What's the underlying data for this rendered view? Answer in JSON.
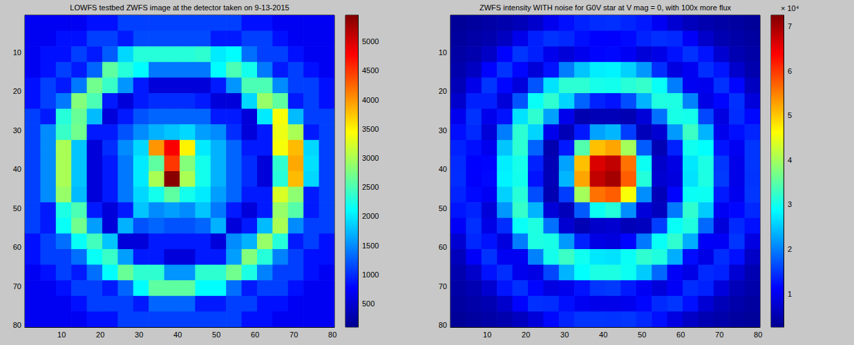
{
  "chart_data": [
    {
      "type": "heatmap",
      "title": "LOWFS testbed ZWFS image at the detector taken on 9-13-2015",
      "x": [
        2.5,
        6.5,
        10.5,
        14.5,
        18.5,
        22.5,
        26.5,
        30.5,
        34.5,
        38.5,
        42.5,
        46.5,
        50.5,
        54.5,
        58.5,
        62.5,
        66.5,
        70.5,
        74.5,
        78.5
      ],
      "y": [
        2.5,
        6.5,
        10.5,
        14.5,
        18.5,
        22.5,
        26.5,
        30.5,
        34.5,
        38.5,
        42.5,
        46.5,
        50.5,
        54.5,
        58.5,
        62.5,
        66.5,
        70.5,
        74.5,
        78.5
      ],
      "values": [
        [
          700,
          700,
          700,
          700,
          850,
          850,
          1100,
          1100,
          1100,
          1100,
          1100,
          1100,
          1100,
          1100,
          850,
          850,
          700,
          700,
          700,
          700
        ],
        [
          700,
          700,
          850,
          850,
          1100,
          1100,
          900,
          1150,
          1150,
          1150,
          1150,
          1150,
          900,
          900,
          1100,
          1100,
          850,
          700,
          700,
          700
        ],
        [
          700,
          850,
          850,
          1100,
          900,
          1250,
          1900,
          2300,
          2300,
          2300,
          2300,
          2350,
          2000,
          2100,
          1350,
          1100,
          1100,
          850,
          700,
          700
        ],
        [
          700,
          850,
          1100,
          900,
          1300,
          2600,
          2300,
          2100,
          1400,
          1400,
          1400,
          1400,
          2100,
          2500,
          2200,
          1400,
          900,
          1100,
          850,
          700
        ],
        [
          850,
          1100,
          900,
          1400,
          2700,
          2400,
          1550,
          900,
          550,
          550,
          550,
          550,
          900,
          1550,
          2500,
          2500,
          1500,
          1100,
          1100,
          850
        ],
        [
          850,
          1100,
          1400,
          2800,
          2500,
          900,
          550,
          900,
          1000,
          1000,
          1000,
          900,
          550,
          550,
          1900,
          2900,
          2600,
          900,
          1100,
          850
        ],
        [
          1100,
          900,
          2300,
          2650,
          1750,
          550,
          900,
          1200,
          1300,
          1300,
          1300,
          1300,
          900,
          900,
          550,
          2000,
          3400,
          1750,
          1100,
          1100
        ],
        [
          1100,
          1500,
          2400,
          2700,
          900,
          900,
          1200,
          1500,
          1700,
          1800,
          1900,
          1600,
          1500,
          1000,
          550,
          900,
          3350,
          3000,
          900,
          1100
        ],
        [
          1100,
          1500,
          3000,
          1800,
          550,
          1000,
          1500,
          1900,
          4000,
          4800,
          3500,
          2000,
          1700,
          1300,
          900,
          900,
          3400,
          3800,
          1900,
          1100
        ],
        [
          1100,
          1500,
          3000,
          1800,
          550,
          900,
          1400,
          2000,
          2600,
          4500,
          2800,
          2200,
          1700,
          1300,
          1000,
          550,
          2350,
          3900,
          1950,
          1100
        ],
        [
          1100,
          1500,
          3000,
          1800,
          550,
          900,
          1400,
          2000,
          3000,
          5400,
          3000,
          2200,
          1700,
          1300,
          1000,
          550,
          2300,
          3800,
          1900,
          1100
        ],
        [
          1100,
          1500,
          2900,
          1750,
          550,
          900,
          1400,
          1900,
          2200,
          2600,
          2200,
          2000,
          1600,
          1300,
          900,
          900,
          3250,
          2850,
          900,
          1100
        ],
        [
          1100,
          900,
          2250,
          2500,
          900,
          550,
          900,
          1800,
          1500,
          1600,
          1500,
          1800,
          1400,
          900,
          550,
          900,
          2900,
          2550,
          900,
          1100
        ],
        [
          1100,
          900,
          2150,
          2700,
          1600,
          550,
          1700,
          1200,
          1300,
          1200,
          1200,
          1300,
          1700,
          550,
          900,
          1750,
          3000,
          1500,
          1100,
          1100
        ],
        [
          850,
          1100,
          1350,
          2150,
          2450,
          1800,
          550,
          550,
          900,
          900,
          900,
          900,
          550,
          1500,
          1700,
          2900,
          2300,
          900,
          1100,
          850
        ],
        [
          850,
          1100,
          1100,
          1350,
          2150,
          2400,
          1600,
          900,
          900,
          550,
          550,
          900,
          900,
          1600,
          2800,
          2300,
          1450,
          1100,
          850,
          850
        ],
        [
          700,
          850,
          1100,
          900,
          1350,
          2100,
          2650,
          2350,
          2350,
          1550,
          1550,
          2350,
          2350,
          2700,
          2250,
          1450,
          1100,
          1100,
          850,
          700
        ],
        [
          700,
          700,
          850,
          1100,
          1100,
          900,
          1300,
          2100,
          2600,
          2600,
          2600,
          2100,
          2100,
          1350,
          900,
          1100,
          1100,
          850,
          700,
          700
        ],
        [
          700,
          700,
          700,
          850,
          1100,
          1100,
          1100,
          900,
          1300,
          1300,
          1300,
          900,
          900,
          1100,
          1100,
          850,
          850,
          700,
          700,
          700
        ],
        [
          700,
          700,
          700,
          700,
          850,
          850,
          1100,
          1100,
          1100,
          1100,
          1100,
          1100,
          1100,
          1100,
          850,
          850,
          700,
          700,
          700,
          700
        ]
      ],
      "xlim": [
        0.5,
        80.5
      ],
      "ylim": [
        80.5,
        0.5
      ],
      "xticks": [
        10,
        20,
        30,
        40,
        50,
        60,
        70,
        80
      ],
      "yticks": [
        10,
        20,
        30,
        40,
        50,
        60,
        70,
        80
      ],
      "colorbar": {
        "lim": [
          100,
          5450
        ],
        "ticks": [
          500,
          1000,
          1500,
          2000,
          2500,
          3000,
          3500,
          4000,
          4500,
          5000
        ]
      }
    },
    {
      "type": "heatmap",
      "title": "ZWFS intensity WITH noise for G0V star at V mag = 0, with 100x more flux",
      "x": [
        2.5,
        6.5,
        10.5,
        14.5,
        18.5,
        22.5,
        26.5,
        30.5,
        34.5,
        38.5,
        42.5,
        46.5,
        50.5,
        54.5,
        58.5,
        62.5,
        66.5,
        70.5,
        74.5,
        78.5
      ],
      "y": [
        2.5,
        6.5,
        10.5,
        14.5,
        18.5,
        22.5,
        26.5,
        30.5,
        34.5,
        38.5,
        42.5,
        46.5,
        50.5,
        54.5,
        58.5,
        62.5,
        66.5,
        70.5,
        74.5,
        78.5
      ],
      "values": [
        [
          3200,
          3700,
          4200,
          4800,
          5700,
          7300,
          10000,
          12200,
          13500,
          14300,
          14500,
          13700,
          12800,
          10500,
          7700,
          6000,
          5000,
          4400,
          3800,
          3300
        ],
        [
          3700,
          4300,
          5000,
          6500,
          9600,
          13400,
          14700,
          14000,
          12200,
          11200,
          11000,
          11800,
          13600,
          14500,
          14000,
          10800,
          7100,
          5300,
          4500,
          3800
        ],
        [
          4200,
          5000,
          6900,
          11400,
          14900,
          13400,
          9800,
          8200,
          10000,
          11500,
          11700,
          10500,
          8200,
          9300,
          12400,
          14600,
          12500,
          7600,
          5300,
          4400
        ],
        [
          4800,
          6500,
          11400,
          14750,
          11600,
          8300,
          12500,
          19750,
          24800,
          27600,
          28000,
          25600,
          21600,
          14400,
          8800,
          10200,
          14400,
          12600,
          7300,
          5000
        ],
        [
          5700,
          9600,
          14900,
          11600,
          8500,
          17000,
          26800,
          31800,
          31800,
          30200,
          30000,
          31400,
          32400,
          29200,
          19800,
          10300,
          10000,
          14600,
          11600,
          6300
        ],
        [
          7300,
          13400,
          13400,
          8300,
          17000,
          29200,
          32000,
          25850,
          18000,
          13500,
          12500,
          16500,
          23600,
          30800,
          30750,
          20200,
          9300,
          11600,
          14550,
          8400
        ],
        [
          10000,
          14700,
          9800,
          12500,
          26800,
          32000,
          22250,
          9750,
          5050,
          5650,
          5700,
          5250,
          8250,
          19000,
          30400,
          30150,
          16150,
          8900,
          14250,
          11700
        ],
        [
          12150,
          14050,
          8200,
          19750,
          31800,
          25850,
          9750,
          5600,
          12800,
          22400,
          23800,
          15400,
          5950,
          7750,
          21800,
          32800,
          23600,
          9750,
          12200,
          13650
        ],
        [
          13500,
          12200,
          10000,
          24800,
          31800,
          18000,
          5050,
          12800,
          34400,
          50600,
          52400,
          40000,
          17500,
          5500,
          13500,
          29800,
          28800,
          12500,
          10200,
          14850
        ],
        [
          14100,
          11200,
          11500,
          27600,
          30200,
          13500,
          5650,
          22400,
          50600,
          66250,
          68000,
          56000,
          29600,
          7200,
          9250,
          27200,
          30600,
          14800,
          9600,
          14800
        ],
        [
          14250,
          11000,
          11750,
          28000,
          30000,
          12500,
          5700,
          23800,
          52400,
          68000,
          70000,
          57350,
          31200,
          7600,
          8750,
          26750,
          30750,
          15250,
          9500,
          14750
        ],
        [
          13650,
          11800,
          10500,
          25600,
          31400,
          16500,
          5250,
          15400,
          40000,
          56000,
          57350,
          45800,
          21000,
          5700,
          11500,
          29400,
          29600,
          13000,
          9900,
          14950
        ],
        [
          12600,
          13600,
          8250,
          21600,
          32400,
          23600,
          8250,
          5950,
          17500,
          29600,
          31200,
          21000,
          8400,
          6250,
          19500,
          32000,
          25200,
          10500,
          11600,
          13950
        ],
        [
          10800,
          14500,
          9300,
          14350,
          29200,
          30800,
          19000,
          7750,
          5500,
          7200,
          7600,
          5700,
          6250,
          15500,
          29200,
          30900,
          18400,
          8400,
          14050,
          12300
        ],
        [
          7700,
          13950,
          12400,
          8750,
          19750,
          30750,
          30400,
          21800,
          13500,
          9250,
          8750,
          11500,
          19500,
          29200,
          31950,
          23200,
          10750,
          10600,
          14800,
          9100
        ],
        [
          6000,
          10800,
          14650,
          10200,
          10250,
          20200,
          30150,
          32800,
          29800,
          27200,
          26750,
          29400,
          32000,
          30900,
          23200,
          12000,
          9300,
          14250,
          12300,
          6800
        ],
        [
          5000,
          7100,
          12450,
          14400,
          10000,
          9250,
          16150,
          23600,
          28800,
          30600,
          30750,
          29600,
          25200,
          18400,
          10750,
          9300,
          14050,
          13500,
          7900,
          5300
        ],
        [
          4400,
          5300,
          7600,
          12600,
          14550,
          11600,
          8900,
          9750,
          12500,
          14800,
          15250,
          13000,
          10500,
          8400,
          10600,
          14250,
          13500,
          8600,
          5700,
          4600
        ],
        [
          3800,
          4500,
          5300,
          7300,
          11550,
          14550,
          14250,
          12200,
          10200,
          9600,
          9500,
          9900,
          11600,
          14050,
          14900,
          12300,
          7900,
          5700,
          4600,
          3900
        ],
        [
          3300,
          3800,
          4400,
          5000,
          6300,
          8400,
          11700,
          13650,
          14850,
          14800,
          14750,
          14950,
          13950,
          12300,
          9100,
          6800,
          5300,
          4600,
          3900,
          3400
        ]
      ],
      "xlim": [
        0.5,
        80.5
      ],
      "ylim": [
        80.5,
        0.5
      ],
      "xticks": [
        10,
        20,
        30,
        40,
        50,
        60,
        70,
        80
      ],
      "yticks": [
        10,
        20,
        30,
        40,
        50,
        60,
        70,
        80
      ],
      "colorbar": {
        "lim": [
          2500,
          72500
        ],
        "ticks": [
          {
            "value": 10000,
            "label": "1"
          },
          {
            "value": 20000,
            "label": "2"
          },
          {
            "value": 30000,
            "label": "3"
          },
          {
            "value": 40000,
            "label": "4"
          },
          {
            "value": 50000,
            "label": "5"
          },
          {
            "value": 60000,
            "label": "6"
          },
          {
            "value": 70000,
            "label": "7"
          }
        ],
        "title": "× 10⁴"
      }
    }
  ]
}
